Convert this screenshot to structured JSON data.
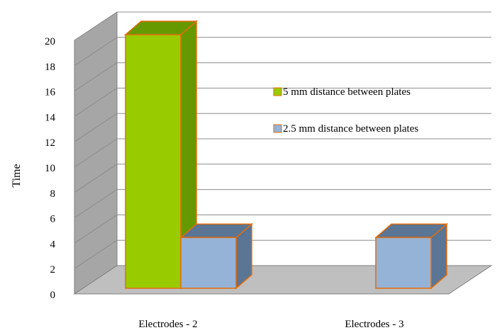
{
  "chart_data": {
    "type": "bar",
    "style": "3d-clustered-column",
    "title": "",
    "xlabel": "",
    "ylabel": "Time",
    "ylim": [
      0,
      20
    ],
    "yticks": [
      0,
      2,
      4,
      6,
      8,
      10,
      12,
      14,
      16,
      18,
      20
    ],
    "categories": [
      "Electrodes - 2",
      "Electrodes - 3"
    ],
    "series": [
      {
        "name": "5 mm distance between plates",
        "values": [
          20,
          0
        ],
        "color": "#99CC00",
        "side_color": "#669900"
      },
      {
        "name": "2.5 mm distance between plates",
        "values": [
          4,
          4
        ],
        "color": "#95B3D7",
        "side_color": "#5B7595"
      }
    ],
    "grid": true,
    "legend_position": "right",
    "outline_color": "#E46C0A",
    "wall_color": "#A6A6A6",
    "floor_color": "#BFBFBF"
  }
}
